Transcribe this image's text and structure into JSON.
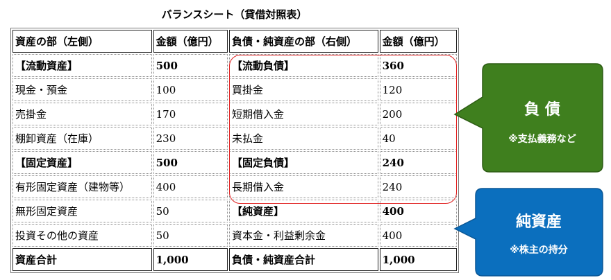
{
  "title": "バランスシート（貸借対照表）",
  "table": {
    "header": [
      "資産の部（左側）",
      "金額（億円）",
      "負債・純資産の部（右側）",
      "金額（億円）"
    ],
    "rows": [
      [
        "【流動資産】",
        "500",
        "【流動負債】",
        "360"
      ],
      [
        "現金・預金",
        "100",
        "買掛金",
        "120"
      ],
      [
        "売掛金",
        "170",
        "短期借入金",
        "200"
      ],
      [
        "棚卸資産（在庫）",
        "230",
        "未払金",
        "40"
      ],
      [
        "【固定資産】",
        "500",
        "【固定負債】",
        "240"
      ],
      [
        "有形固定資産（建物等）",
        "400",
        "長期借入金",
        "240"
      ],
      [
        "無形固定資産",
        "50",
        "【純資産】",
        "400"
      ],
      [
        "投資その他の資産",
        "50",
        "資本金・利益剰余金",
        "400"
      ],
      [
        "資産合計",
        "1,000",
        "負債・純資産合計",
        "1,000"
      ]
    ]
  },
  "callouts": {
    "liability": {
      "title": "負 債",
      "note": "※支払義務など"
    },
    "equity": {
      "title": "純資産",
      "note": "※株主の持分"
    }
  }
}
